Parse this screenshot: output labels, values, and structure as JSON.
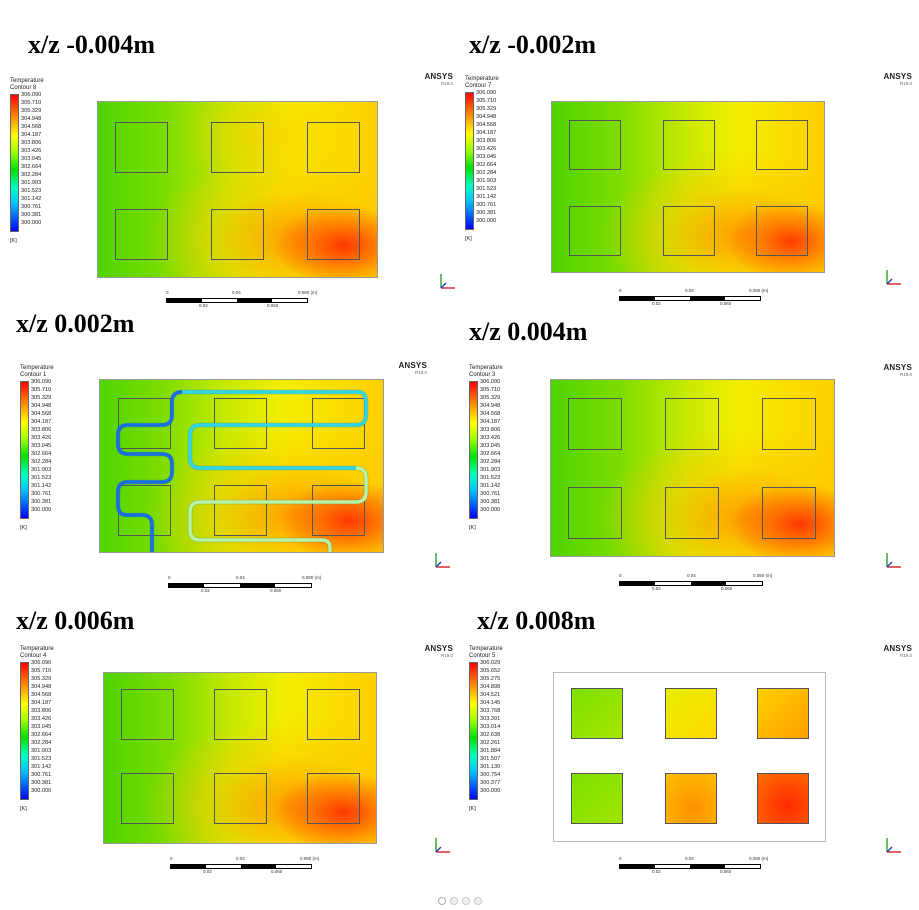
{
  "brand": {
    "name": "ANSYS",
    "version": "R19.0"
  },
  "legend_common": {
    "heading": "Temperature",
    "unit": "[K]"
  },
  "ticks_standard": [
    "306.090",
    "305.710",
    "305.329",
    "304.948",
    "304.568",
    "304.187",
    "303.806",
    "303.426",
    "303.045",
    "302.664",
    "302.284",
    "301.903",
    "301.523",
    "301.142",
    "300.761",
    "300.381",
    "300.000"
  ],
  "ticks_last": [
    "306.029",
    "305.652",
    "305.275",
    "304.898",
    "304.521",
    "304.145",
    "303.768",
    "303.391",
    "303.014",
    "302.638",
    "302.261",
    "301.884",
    "301.507",
    "301.130",
    "300.754",
    "300.377",
    "300.000"
  ],
  "scale_labels": {
    "zero": "0",
    "mid1": "0.02",
    "mid2": "0.04",
    "mid3": "0.060",
    "end": "0.080 (m)"
  },
  "panels": [
    {
      "title": "x/z -0.004m",
      "contour": "Contour 8"
    },
    {
      "title": "x/z -0.002m",
      "contour": "Contour 7"
    },
    {
      "title": "x/z 0.002m",
      "contour": "Contour 1"
    },
    {
      "title": "x/z 0.004m",
      "contour": "Contour 3"
    },
    {
      "title": "x/z 0.006m",
      "contour": "Contour 4"
    },
    {
      "title": "x/z 0.008m",
      "contour": "Contour 5"
    }
  ],
  "colormap": [
    "#0000ff",
    "#0080ff",
    "#00ffff",
    "#00ff80",
    "#00ff00",
    "#80ff00",
    "#ffff00",
    "#ff8000",
    "#ff0000"
  ],
  "pager": {
    "count": 4,
    "active": 0
  }
}
